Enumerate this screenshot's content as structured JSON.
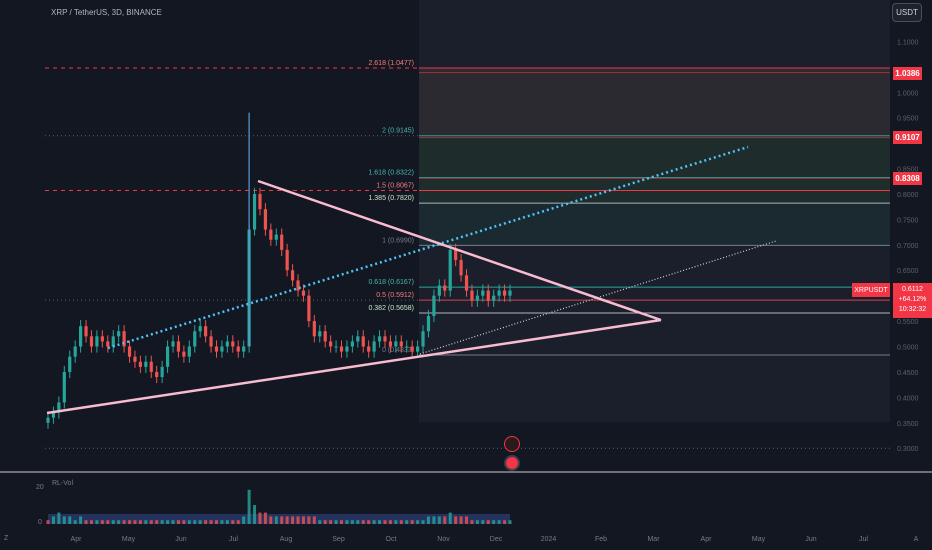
{
  "header": {
    "title": "XRP / TetherUS, 3D, BINANCE",
    "currency": "USDT"
  },
  "labels": {
    "symbol": "XRPUSDT",
    "last_price": "0.6112",
    "change": "+64.12%",
    "countdown": "10:32:32",
    "volume_label": "RL-Vol",
    "corner": "Z"
  },
  "colors": {
    "background": "#131722",
    "up": "#26a69a",
    "down": "#ef5350",
    "triangle": "#f8bbd0",
    "trend": "#4fc3f7"
  },
  "chart_data": {
    "type": "candlestick",
    "y_axis": {
      "range": [
        0.25,
        1.12
      ],
      "ticks": [
        "1.1000",
        "1.0000",
        "0.9500",
        "0.8500",
        "0.8000",
        "0.7500",
        "0.7000",
        "0.6500",
        "0.6000",
        "0.5500",
        "0.5000",
        "0.4500",
        "0.4000",
        "0.3500",
        "0.3000"
      ]
    },
    "x_axis": {
      "ticks": [
        "Apr",
        "May",
        "Jun",
        "Jul",
        "Aug",
        "Sep",
        "Oct",
        "Nov",
        "Dec",
        "2024",
        "Feb",
        "Mar",
        "Apr",
        "May",
        "Jun",
        "Jul",
        "A"
      ]
    },
    "fib_levels": [
      {
        "label": "2.618 (1.0477)",
        "value": 1.0477
      },
      {
        "label": "2 (0.9145)",
        "value": 0.9145
      },
      {
        "label": "1.618 (0.8322)",
        "value": 0.8322
      },
      {
        "label": "1.5 (0.8067)",
        "value": 0.8067
      },
      {
        "label": "1.385 (0.7820)",
        "value": 0.782
      },
      {
        "label": "1 (0.6990)",
        "value": 0.699
      },
      {
        "label": "0.618 (0.6167)",
        "value": 0.6167
      },
      {
        "label": "0.5 (0.5912)",
        "value": 0.5912
      },
      {
        "label": "0.382 (0.5658)",
        "value": 0.5658
      },
      {
        "label": "0 (0.4833)",
        "value": 0.4833
      }
    ],
    "price_tags": [
      {
        "label": "1.0386",
        "value": 1.0386
      },
      {
        "label": "0.9107",
        "value": 0.9107
      },
      {
        "label": "0.8308",
        "value": 0.8308
      }
    ],
    "close_prices": [
      0.36,
      0.37,
      0.39,
      0.45,
      0.48,
      0.5,
      0.54,
      0.52,
      0.5,
      0.52,
      0.51,
      0.5,
      0.52,
      0.53,
      0.5,
      0.48,
      0.47,
      0.46,
      0.47,
      0.45,
      0.44,
      0.46,
      0.5,
      0.51,
      0.49,
      0.48,
      0.5,
      0.53,
      0.54,
      0.52,
      0.5,
      0.49,
      0.5,
      0.51,
      0.5,
      0.49,
      0.5,
      0.73,
      0.8,
      0.77,
      0.73,
      0.71,
      0.72,
      0.69,
      0.65,
      0.63,
      0.61,
      0.6,
      0.55,
      0.52,
      0.53,
      0.51,
      0.5,
      0.5,
      0.49,
      0.5,
      0.51,
      0.52,
      0.5,
      0.49,
      0.51,
      0.52,
      0.51,
      0.5,
      0.51,
      0.5,
      0.5,
      0.49,
      0.5,
      0.53,
      0.56,
      0.6,
      0.62,
      0.61,
      0.69,
      0.67,
      0.64,
      0.61,
      0.59,
      0.6,
      0.61,
      0.59,
      0.6,
      0.61,
      0.6,
      0.61
    ],
    "volume": [
      1,
      2,
      3,
      2,
      2,
      1,
      2,
      1,
      1,
      1,
      1,
      1,
      1,
      1,
      1,
      1,
      1,
      1,
      1,
      1,
      1,
      1,
      1,
      1,
      1,
      1,
      1,
      1,
      1,
      1,
      1,
      1,
      1,
      1,
      1,
      1,
      2,
      9,
      5,
      3,
      3,
      2,
      2,
      2,
      2,
      2,
      2,
      2,
      2,
      2,
      1,
      1,
      1,
      1,
      1,
      1,
      1,
      1,
      1,
      1,
      1,
      1,
      1,
      1,
      1,
      1,
      1,
      1,
      1,
      1,
      2,
      2,
      2,
      2,
      3,
      2,
      2,
      2,
      1,
      1,
      1,
      1,
      1,
      1,
      1,
      1
    ]
  }
}
